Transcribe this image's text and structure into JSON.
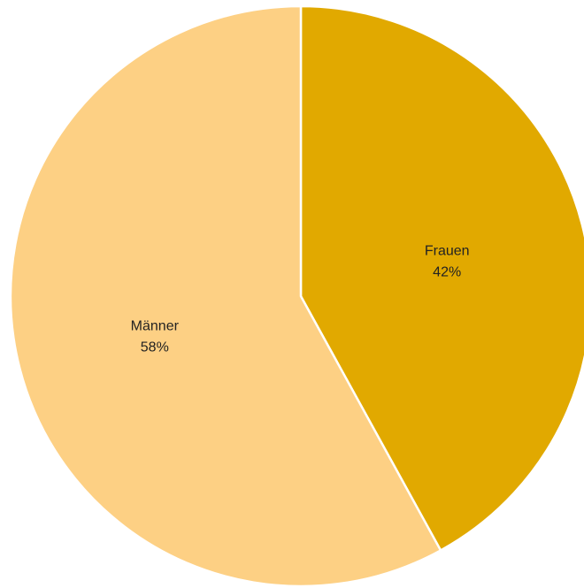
{
  "chart_data": {
    "type": "pie",
    "title": "",
    "series": [
      {
        "values": [
          {
            "label": "Frauen",
            "value": 42,
            "value_label": "42%",
            "color": "#E1A900"
          },
          {
            "label": "Männer",
            "value": 58,
            "value_label": "58%",
            "color": "#FDD084"
          }
        ]
      }
    ],
    "start_angle_deg": 0,
    "direction": "clockwise",
    "legend": "none"
  }
}
